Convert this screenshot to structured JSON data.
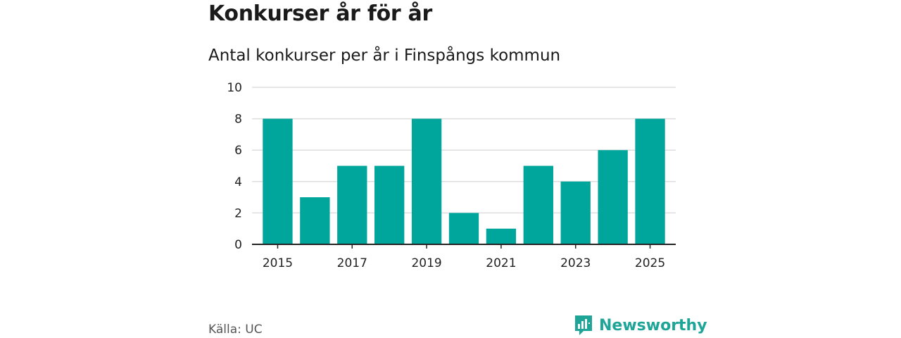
{
  "header": {
    "title": "Konkurser år för år",
    "subtitle": "Antal konkurser per år i Finspångs kommun"
  },
  "footer": {
    "source": "Källa: UC",
    "brand": "Newsworthy",
    "brand_icon": "bar-chart-speech-bubble-icon"
  },
  "colors": {
    "bar": "#00a69c",
    "grid": "#dddddd",
    "axis": "#222222",
    "brand": "#1ea598"
  },
  "chart_data": {
    "type": "bar",
    "categories": [
      "2015",
      "2016",
      "2017",
      "2018",
      "2019",
      "2020",
      "2021",
      "2022",
      "2023",
      "2024",
      "2025"
    ],
    "values": [
      8,
      3,
      5,
      5,
      8,
      2,
      1,
      5,
      4,
      6,
      8
    ],
    "x_tick_labels": [
      "2015",
      "2017",
      "2019",
      "2021",
      "2023",
      "2025"
    ],
    "y_ticks": [
      0,
      2,
      4,
      6,
      8,
      10
    ],
    "ylim": [
      0,
      10
    ],
    "title": "Konkurser år för år",
    "subtitle": "Antal konkurser per år i Finspångs kommun",
    "xlabel": "",
    "ylabel": "",
    "grid": true,
    "legend": "none"
  }
}
